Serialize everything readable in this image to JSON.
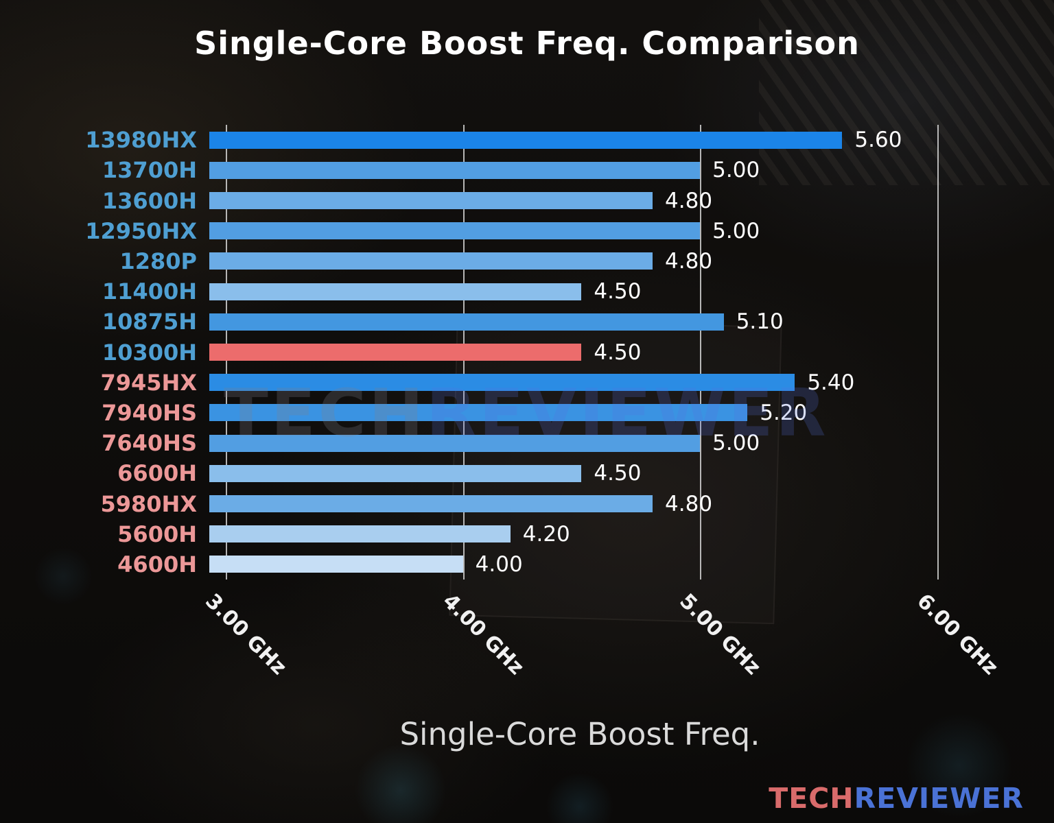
{
  "chart_data": {
    "type": "bar",
    "orientation": "horizontal",
    "title": "Single-Core Boost Freq. Comparison",
    "xlabel": "Single-Core Boost Freq.",
    "xlim": [
      2.93,
      6.36
    ],
    "grid": true,
    "legend": "none",
    "highlight_index": 7,
    "x_ticks": [
      {
        "label": "3.00 GHz",
        "value": 3.0
      },
      {
        "label": "4.00 GHz",
        "value": 4.0
      },
      {
        "label": "5.00 GHz",
        "value": 5.0
      },
      {
        "label": "6.00 GHz",
        "value": 6.0
      }
    ],
    "bars": [
      {
        "category": "13980HX",
        "value": 5.6,
        "value_label": "5.60",
        "bar_color": "#1b84e8",
        "category_color": "#4f9fd2"
      },
      {
        "category": "13700H",
        "value": 5.0,
        "value_label": "5.00",
        "bar_color": "#529ee2",
        "category_color": "#4f9fd2"
      },
      {
        "category": "13600H",
        "value": 4.8,
        "value_label": "4.80",
        "bar_color": "#6bace6",
        "category_color": "#4f9fd2"
      },
      {
        "category": "12950HX",
        "value": 5.0,
        "value_label": "5.00",
        "bar_color": "#529ee2",
        "category_color": "#4f9fd2"
      },
      {
        "category": "1280P",
        "value": 4.8,
        "value_label": "4.80",
        "bar_color": "#6bace6",
        "category_color": "#4f9fd2"
      },
      {
        "category": "11400H",
        "value": 4.5,
        "value_label": "4.50",
        "bar_color": "#8abeeb",
        "category_color": "#4f9fd2"
      },
      {
        "category": "10875H",
        "value": 5.1,
        "value_label": "5.10",
        "bar_color": "#4397e0",
        "category_color": "#4f9fd2"
      },
      {
        "category": "10300H",
        "value": 4.5,
        "value_label": "4.50",
        "bar_color": "#ec6c6c",
        "category_color": "#4f9fd2"
      },
      {
        "category": "7945HX",
        "value": 5.4,
        "value_label": "5.40",
        "bar_color": "#2b8ce4",
        "category_color": "#ec9898"
      },
      {
        "category": "7940HS",
        "value": 5.2,
        "value_label": "5.20",
        "bar_color": "#3a93e2",
        "category_color": "#ec9898"
      },
      {
        "category": "7640HS",
        "value": 5.0,
        "value_label": "5.00",
        "bar_color": "#529ee2",
        "category_color": "#ec9898"
      },
      {
        "category": "6600H",
        "value": 4.5,
        "value_label": "4.50",
        "bar_color": "#8abeeb",
        "category_color": "#ec9898"
      },
      {
        "category": "5980HX",
        "value": 4.8,
        "value_label": "4.80",
        "bar_color": "#6bace6",
        "category_color": "#ec9898"
      },
      {
        "category": "5600H",
        "value": 4.2,
        "value_label": "4.20",
        "bar_color": "#a9ceef",
        "category_color": "#ec9898"
      },
      {
        "category": "4600H",
        "value": 4.0,
        "value_label": "4.00",
        "bar_color": "#c6def5",
        "category_color": "#ec9898"
      }
    ]
  },
  "watermark": {
    "tech": "TECH",
    "reviewer": "REVIEWER"
  },
  "logo": {
    "tech": "TECH",
    "reviewer": "REVIEWER",
    "tech_color": "#d96b6b",
    "reviewer_color": "#4a72d6"
  }
}
